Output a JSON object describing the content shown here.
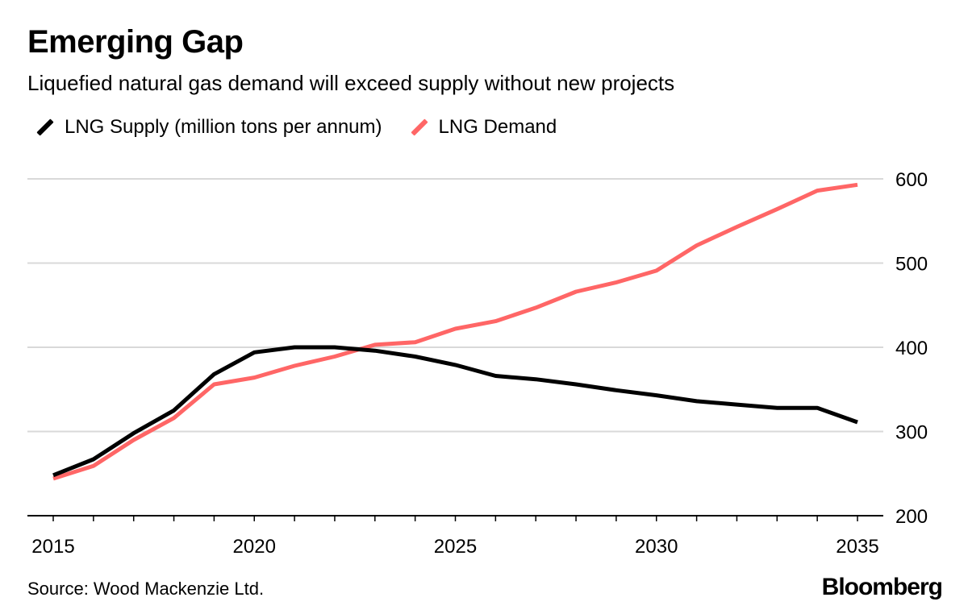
{
  "title": "Emerging Gap",
  "subtitle": "Liquefied natural gas demand will exceed supply without new projects",
  "source": "Source: Wood Mackenzie Ltd.",
  "logo": "Bloomberg",
  "colors": {
    "supply": "#000000",
    "demand": "#ff6666",
    "grid": "#d9d9d9"
  },
  "chart_data": {
    "type": "line",
    "title": "Emerging Gap",
    "subtitle": "Liquefied natural gas demand will exceed supply without new projects",
    "x": [
      2015,
      2016,
      2017,
      2018,
      2019,
      2020,
      2021,
      2022,
      2023,
      2024,
      2025,
      2026,
      2027,
      2028,
      2029,
      2030,
      2031,
      2032,
      2033,
      2034,
      2035
    ],
    "series": [
      {
        "name": "LNG Supply (million tons per annum)",
        "color": "#000000",
        "values": [
          248,
          267,
          298,
          325,
          368,
          394,
          400,
          400,
          396,
          389,
          379,
          366,
          362,
          356,
          349,
          343,
          336,
          332,
          328,
          328,
          311
        ]
      },
      {
        "name": "LNG Demand",
        "color": "#ff6666",
        "values": [
          244,
          259,
          290,
          316,
          356,
          364,
          378,
          389,
          403,
          406,
          422,
          431,
          447,
          466,
          477,
          491,
          521,
          543,
          564,
          586,
          593
        ]
      }
    ],
    "xlim": [
      2015,
      2035
    ],
    "ylim": [
      200,
      600
    ],
    "xticks": [
      "2015",
      "2020",
      "2025",
      "2030",
      "2035"
    ],
    "yticks": [
      "200",
      "300",
      "400",
      "500",
      "600"
    ],
    "yaxis_side": "right",
    "grid": "horizontal",
    "legend_placement": "top-left"
  }
}
